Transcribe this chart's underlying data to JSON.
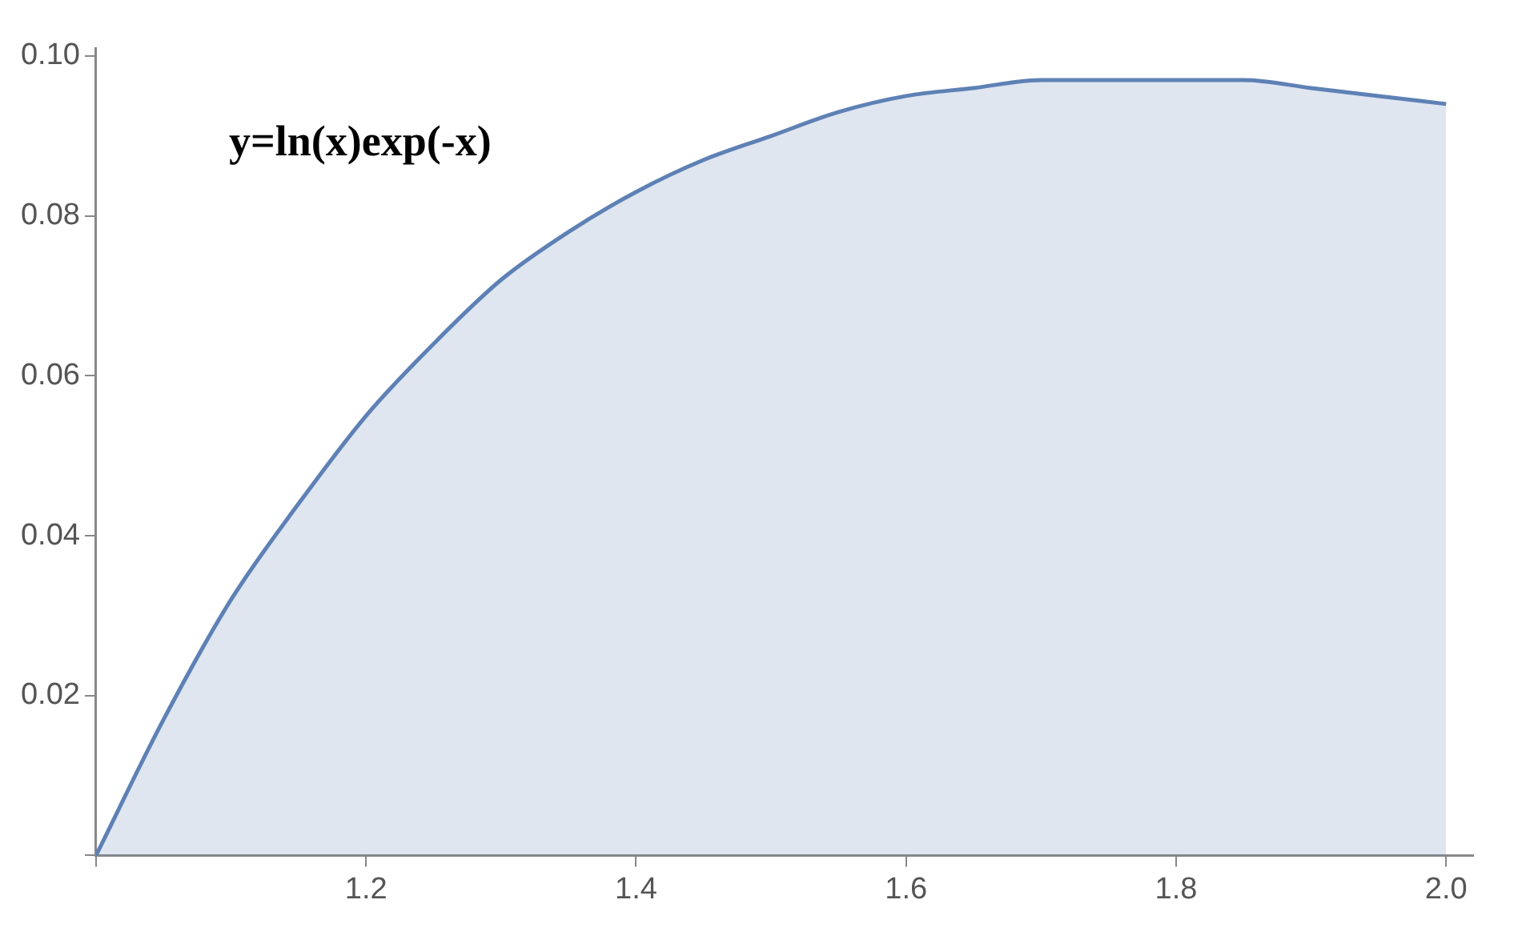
{
  "chart_data": {
    "type": "area",
    "annotations": [
      "y=ln(x)exp(-x)"
    ],
    "x": [
      1.0,
      1.05,
      1.1,
      1.15,
      1.2,
      1.25,
      1.3,
      1.35,
      1.4,
      1.45,
      1.5,
      1.55,
      1.6,
      1.65,
      1.7,
      1.75,
      1.8,
      1.85,
      1.9,
      1.95,
      2.0
    ],
    "series": [
      {
        "color": "#5e81b5",
        "values": [
          0,
          0.017,
          0.032,
          0.044,
          0.055,
          0.064,
          0.072,
          0.078,
          0.083,
          0.087,
          0.09,
          0.093,
          0.095,
          0.096,
          0.097,
          0.097,
          0.097,
          0.097,
          0.096,
          0.095,
          0.094
        ]
      }
    ],
    "xlim": [
      1,
      2.02
    ],
    "xticks": [
      {
        "value": 1,
        "label": null
      },
      1.2,
      1.4,
      1.6,
      1.8,
      {
        "value": 2,
        "label": "2.0"
      }
    ],
    "ylim": [
      0,
      0.101
    ],
    "yticks": [
      {
        "value": 0,
        "label": null
      },
      0.02,
      0.04,
      0.06,
      0.08,
      {
        "value": 0.1,
        "label": "0.10"
      }
    ]
  }
}
